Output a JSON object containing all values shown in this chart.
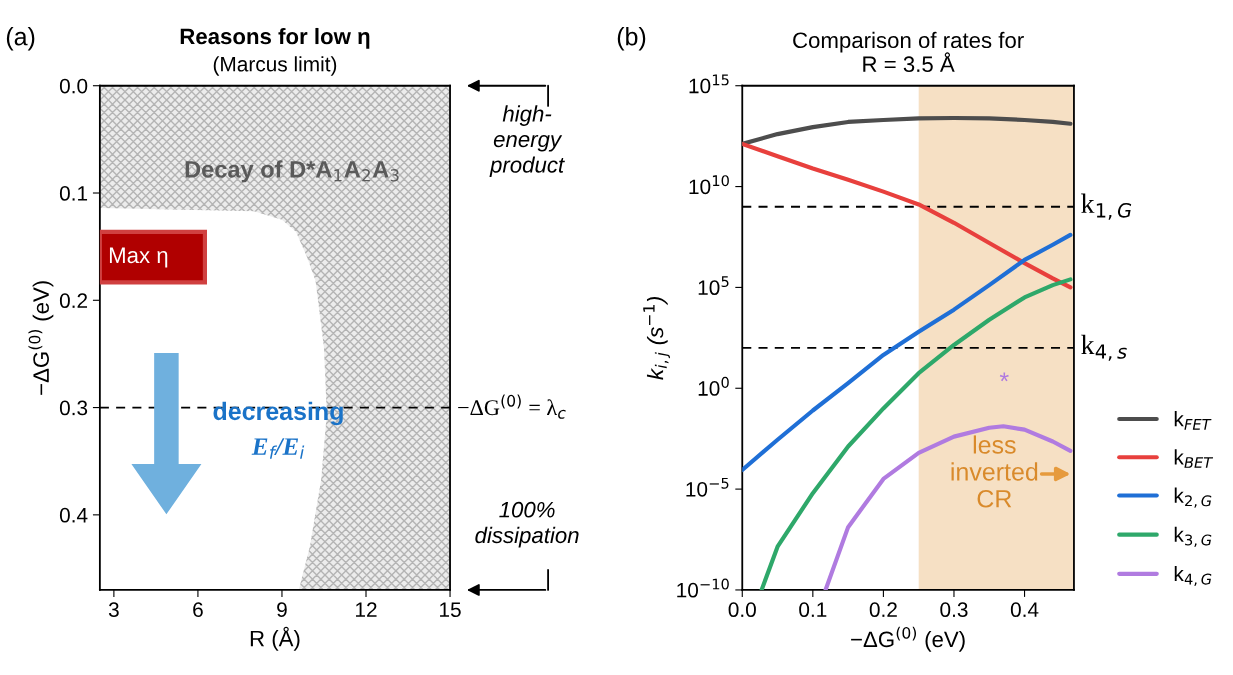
{
  "chart_data": [
    {
      "type": "area",
      "orientation": "horizontal",
      "title": "Reasons for low η",
      "subtitle": "(Marcus limit)",
      "xlabel": "R (Å)",
      "ylabel": "−ΔG$^{(0)}$ (eV)",
      "x": [
        0.114,
        0.117,
        0.125,
        0.136,
        0.16,
        0.182,
        0.244,
        0.306,
        0.367,
        0.429,
        0.47
      ],
      "series": [
        {
          "color": "#ffffff",
          "values": [
            2.5,
            8.0,
            9.0,
            9.5,
            9.9,
            10.2,
            10.5,
            10.6,
            10.4,
            10.0,
            9.6
          ]
        }
      ],
      "bands": [
        {
          "axis": "x",
          "from": 2.5,
          "to": 15,
          "color": "#ececec"
        }
      ],
      "xlim": [
        2.5,
        15
      ],
      "xticks": [
        3,
        6,
        9,
        12,
        15
      ],
      "ylim": [
        0.47,
        0.0
      ],
      "yticks": [
        {
          "value": 0,
          "label": "0.0"
        },
        0.1,
        0.2,
        0.3,
        0.4
      ],
      "ref_lines": [
        {
          "axis": "y",
          "value": 0.3,
          "label": "−ΔG$^{(0)}$ = λ$_{c}$",
          "color": "#000000",
          "line_style": "dashed"
        }
      ],
      "annotations": [
        "(a)",
        "Decay of D*A$_{1}$A$_{2}$A$_{3}$",
        "Max η",
        "decreasing",
        "E$_{f}$/E$_{i}$",
        "high-\nenergy\nproduct",
        "100%\ndissipation"
      ]
    },
    {
      "type": "line",
      "title": "Comparison of rates for\nR = 3.5 Å",
      "xlabel": "−ΔG$^{(0)}$ (eV)",
      "ylabel": "k$_{i,j}$ (s$^{−1}$)",
      "log": "y",
      "x": [
        0.0,
        0.05,
        0.1,
        0.15,
        0.2,
        0.25,
        0.3,
        0.35,
        0.4,
        0.44,
        0.465
      ],
      "series": [
        {
          "name": "k$_{FET}$",
          "color": "#4d4d4d",
          "values": [
            1300000000000.0,
            4000000000000.0,
            8900000000000.0,
            16000000000000.0,
            20000000000000.0,
            24000000000000.0,
            25000000000000.0,
            24000000000000.0,
            20000000000000.0,
            16000000000000.0,
            13000000000000.0
          ]
        },
        {
          "name": "k$_{BET}$",
          "color": "#e8403d",
          "values": [
            1300000000000.0,
            320000000000.0,
            79000000000.0,
            22000000000.0,
            5600000000.0,
            1300000000.0,
            160000000.0,
            16000000.0,
            1600000.0,
            280000.0,
            100000.0
          ]
        },
        {
          "name": "k$_{2,G}$",
          "color": "#1f6fd6",
          "values": [
            8.9e-05,
            0.0028,
            0.079,
            1.8,
            45,
            630,
            7900.0,
            130000.0,
            2300000.0,
            13000000.0,
            40000000.0
          ]
        },
        {
          "name": "k$_{3,G}$",
          "color": "#2ea86a",
          "x": [
            0.0274,
            0.05,
            0.1,
            0.15,
            0.2,
            0.25,
            0.3,
            0.35,
            0.4,
            0.44,
            0.465
          ],
          "values": [
            1e-10,
            1.4e-08,
            6.3e-06,
            0.0013,
            0.1,
            5.6,
            140,
            2500.0,
            32000.0,
            130000.0,
            250000.0
          ]
        },
        {
          "name": "k$_{4,G}$",
          "color": "#b07be0",
          "x": [
            0.118,
            0.15,
            0.2,
            0.25,
            0.3,
            0.35,
            0.37,
            0.4,
            0.44,
            0.465
          ],
          "values": [
            1e-10,
            1.3e-07,
            3.2e-05,
            0.00063,
            0.004,
            0.011,
            0.013,
            0.0089,
            0.0023,
            0.00079
          ]
        }
      ],
      "xlim": [
        0,
        0.47
      ],
      "xticks": [
        {
          "value": 0,
          "label": "0.0"
        },
        0.1,
        0.2,
        0.3,
        0.4
      ],
      "ylim": [
        1e-10,
        1000000000000000.0
      ],
      "yticks": [
        {
          "value": 1e-10,
          "label": "10$^{−10}$"
        },
        {
          "value": 1e-05,
          "label": "10$^{−5}$"
        },
        {
          "value": 1,
          "label": "10$^{0}$"
        },
        {
          "value": 100000.0,
          "label": "10$^{5}$"
        },
        {
          "value": 10000000000.0,
          "label": "10$^{10}$"
        },
        {
          "value": 1000000000000000.0,
          "label": "10$^{15}$"
        }
      ],
      "legend": "right",
      "ref_lines": [
        {
          "axis": "y",
          "value": 1000000000.0,
          "label": "k$_{1,G}$",
          "color": "#000000",
          "line_style": "dashed"
        },
        {
          "axis": "y",
          "value": 100.0,
          "label": "k$_{4,s}$",
          "color": "#000000",
          "line_style": "dashed"
        }
      ],
      "bands": [
        {
          "axis": "x",
          "from": 0.25,
          "to": 0.47,
          "color": "#f6e0c4"
        }
      ],
      "annotations": [
        "(b)",
        "*",
        "less\ninverted\nCR"
      ]
    }
  ]
}
